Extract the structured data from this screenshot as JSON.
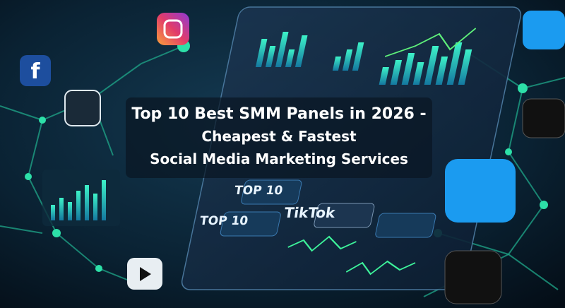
{
  "title": [
    "Top 10 Best SMM Panels in 2026 -",
    "Cheapest & Fastest",
    "Social Media Marketing Services"
  ],
  "tags": [
    "TOP 10",
    "TOP 10",
    "TikTok"
  ]
}
